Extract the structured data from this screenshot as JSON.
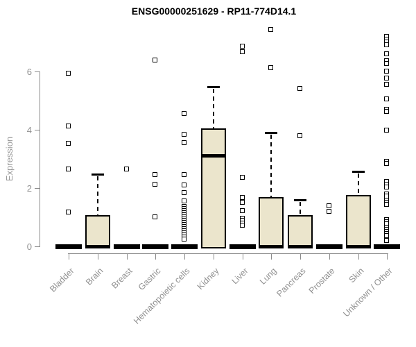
{
  "chart_data": {
    "type": "boxplot",
    "title": "ENSG00000251629 - RP11-774D14.1",
    "ylabel": "Expression",
    "xlabel": "",
    "yticks": [
      0,
      2,
      4,
      6
    ],
    "ylim": [
      0,
      7.6
    ],
    "grid": false,
    "legend": "none",
    "categories": [
      "Bladder",
      "Brain",
      "Breast",
      "Gastric",
      "Hematopoietic cells",
      "Kidney",
      "Liver",
      "Lung",
      "Pancreas",
      "Prostate",
      "Skin",
      "Unknown / Other"
    ],
    "boxes": [
      {
        "category": "Bladder",
        "collapsed": true,
        "min": 0,
        "q1": 0,
        "median": 0,
        "q3": 0,
        "whisker_high": 0,
        "outliers": [
          5.93,
          4.12,
          3.52,
          2.64,
          1.17
        ]
      },
      {
        "category": "Brain",
        "collapsed": false,
        "min": 0,
        "q1": 0,
        "median": 0,
        "q3": 1.07,
        "whisker_high": 2.48,
        "outliers": []
      },
      {
        "category": "Breast",
        "collapsed": true,
        "min": 0,
        "q1": 0,
        "median": 0,
        "q3": 0,
        "whisker_high": 0,
        "outliers": [
          2.64
        ]
      },
      {
        "category": "Gastric",
        "collapsed": true,
        "min": 0,
        "q1": 0,
        "median": 0,
        "q3": 0,
        "whisker_high": 0,
        "outliers": [
          6.38,
          2.45,
          2.12,
          1.0
        ]
      },
      {
        "category": "Hematopoietic cells",
        "collapsed": true,
        "min": 0,
        "q1": 0,
        "median": 0,
        "q3": 0,
        "whisker_high": 0,
        "outliers": [
          4.55,
          3.83,
          3.55,
          2.45,
          2.1,
          1.83,
          1.55,
          1.36,
          1.29,
          1.22,
          1.15,
          1.08,
          1.01,
          0.94,
          0.87,
          0.8,
          0.73,
          0.66,
          0.59,
          0.52,
          0.45,
          0.38,
          0.31,
          0.24
        ]
      },
      {
        "category": "Kidney",
        "collapsed": false,
        "min": 0,
        "q1": 0,
        "median": 3.12,
        "q3": 4.05,
        "whisker_high": 5.48,
        "outliers": []
      },
      {
        "category": "Liver",
        "collapsed": true,
        "min": 0,
        "q1": 0,
        "median": 0,
        "q3": 0,
        "whisker_high": 0,
        "outliers": [
          6.86,
          6.67,
          2.36,
          1.67,
          1.5,
          1.21,
          0.95,
          0.88,
          0.79,
          0.71
        ]
      },
      {
        "category": "Lung",
        "collapsed": false,
        "min": 0,
        "q1": 0,
        "median": 0,
        "q3": 1.69,
        "whisker_high": 3.9,
        "outliers": [
          7.44,
          6.11
        ]
      },
      {
        "category": "Pancreas",
        "collapsed": false,
        "min": 0,
        "q1": 0,
        "median": 0,
        "q3": 1.07,
        "whisker_high": 1.6,
        "outliers": [
          5.41,
          3.79
        ]
      },
      {
        "category": "Prostate",
        "collapsed": true,
        "min": 0,
        "q1": 0,
        "median": 0,
        "q3": 0,
        "whisker_high": 0,
        "outliers": [
          1.38,
          1.19
        ]
      },
      {
        "category": "Skin",
        "collapsed": false,
        "min": 0,
        "q1": 0,
        "median": 0,
        "q3": 1.76,
        "whisker_high": 2.57,
        "outliers": []
      },
      {
        "category": "Unknown / Other",
        "collapsed": true,
        "min": 0,
        "q1": 0,
        "median": 0,
        "q3": 0,
        "whisker_high": 0,
        "outliers": [
          7.19,
          7.1,
          7.0,
          6.9,
          6.6,
          6.36,
          6.26,
          6.0,
          5.76,
          5.55,
          5.05,
          4.69,
          4.62,
          3.98,
          2.9,
          2.83,
          2.21,
          2.12,
          2.02,
          1.79,
          1.71,
          1.58,
          1.5,
          1.43,
          0.9,
          0.83,
          0.76,
          0.64,
          0.57,
          0.5,
          0.43,
          0.36,
          0.19
        ]
      }
    ],
    "colors": {
      "box_fill": "#ebe5cc",
      "box_border": "#000000",
      "median": "#000000",
      "whisker": "#000000",
      "outlier": "#000000",
      "axis": "#8b8b8b",
      "tick_label": "#909090",
      "title": "#000000",
      "background": "#ffffff"
    }
  }
}
